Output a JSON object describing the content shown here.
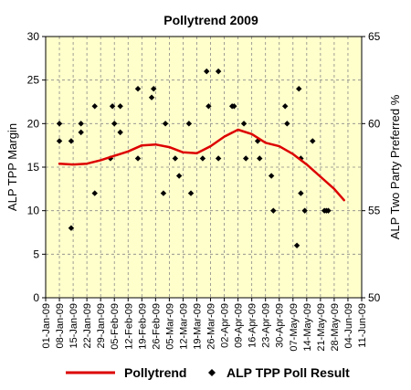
{
  "chart_data": {
    "type": "line",
    "title": "Pollytrend 2009",
    "ylabel": "ALP TPP Margin",
    "y2label": "ALP Two Party Preferred %",
    "ylim": [
      0,
      30
    ],
    "y2lim": [
      50,
      65
    ],
    "yticks": [
      0,
      5,
      10,
      15,
      20,
      25,
      30
    ],
    "y2ticks": [
      50,
      55,
      60,
      65
    ],
    "xlim": [
      "2009-01-01",
      "2009-06-11"
    ],
    "x_tick_labels": [
      "01-Jan-09",
      "08-Jan-09",
      "15-Jan-09",
      "22-Jan-09",
      "29-Jan-09",
      "05-Feb-09",
      "12-Feb-09",
      "19-Feb-09",
      "26-Feb-09",
      "05-Mar-09",
      "12-Mar-09",
      "19-Mar-09",
      "26-Mar-09",
      "02-Apr-09",
      "09-Apr-09",
      "16-Apr-09",
      "23-Apr-09",
      "30-Apr-09",
      "07-May-09",
      "14-May-09",
      "21-May-09",
      "28-May-09",
      "04-Jun-09",
      "11-Jun-09"
    ],
    "grid": true,
    "plot_background": "#ffffcc",
    "legend_position": "bottom",
    "series": [
      {
        "name": "Pollytrend",
        "kind": "line",
        "color": "#dd0000",
        "points": [
          {
            "x": "2009-01-08",
            "y": 15.4
          },
          {
            "x": "2009-01-15",
            "y": 15.3
          },
          {
            "x": "2009-01-22",
            "y": 15.4
          },
          {
            "x": "2009-01-29",
            "y": 15.8
          },
          {
            "x": "2009-02-05",
            "y": 16.3
          },
          {
            "x": "2009-02-12",
            "y": 16.8
          },
          {
            "x": "2009-02-19",
            "y": 17.5
          },
          {
            "x": "2009-02-26",
            "y": 17.6
          },
          {
            "x": "2009-03-05",
            "y": 17.3
          },
          {
            "x": "2009-03-12",
            "y": 16.7
          },
          {
            "x": "2009-03-19",
            "y": 16.6
          },
          {
            "x": "2009-03-26",
            "y": 17.4
          },
          {
            "x": "2009-04-02",
            "y": 18.5
          },
          {
            "x": "2009-04-09",
            "y": 19.3
          },
          {
            "x": "2009-04-16",
            "y": 18.8
          },
          {
            "x": "2009-04-23",
            "y": 17.8
          },
          {
            "x": "2009-04-30",
            "y": 17.4
          },
          {
            "x": "2009-05-07",
            "y": 16.5
          },
          {
            "x": "2009-05-14",
            "y": 15.3
          },
          {
            "x": "2009-05-21",
            "y": 13.9
          },
          {
            "x": "2009-05-28",
            "y": 12.5
          },
          {
            "x": "2009-06-02",
            "y": 11.2
          }
        ]
      },
      {
        "name": "ALP TPP Poll Result",
        "kind": "scatter",
        "color": "#000000",
        "points": [
          {
            "x": "2009-01-08",
            "y": 20
          },
          {
            "x": "2009-01-08",
            "y": 18
          },
          {
            "x": "2009-01-14",
            "y": 8
          },
          {
            "x": "2009-01-14",
            "y": 18
          },
          {
            "x": "2009-01-19",
            "y": 20
          },
          {
            "x": "2009-01-19",
            "y": 19
          },
          {
            "x": "2009-01-26",
            "y": 22
          },
          {
            "x": "2009-01-26",
            "y": 12
          },
          {
            "x": "2009-02-03",
            "y": 16
          },
          {
            "x": "2009-02-04",
            "y": 22
          },
          {
            "x": "2009-02-05",
            "y": 20
          },
          {
            "x": "2009-02-08",
            "y": 22
          },
          {
            "x": "2009-02-08",
            "y": 19
          },
          {
            "x": "2009-02-17",
            "y": 24
          },
          {
            "x": "2009-02-17",
            "y": 16
          },
          {
            "x": "2009-02-24",
            "y": 23
          },
          {
            "x": "2009-02-25",
            "y": 24
          },
          {
            "x": "2009-03-02",
            "y": 12
          },
          {
            "x": "2009-03-03",
            "y": 20
          },
          {
            "x": "2009-03-08",
            "y": 16
          },
          {
            "x": "2009-03-10",
            "y": 14
          },
          {
            "x": "2009-03-15",
            "y": 20
          },
          {
            "x": "2009-03-16",
            "y": 12
          },
          {
            "x": "2009-03-22",
            "y": 16
          },
          {
            "x": "2009-03-24",
            "y": 26
          },
          {
            "x": "2009-03-25",
            "y": 22
          },
          {
            "x": "2009-03-30",
            "y": 26
          },
          {
            "x": "2009-03-30",
            "y": 16
          },
          {
            "x": "2009-04-06",
            "y": 22
          },
          {
            "x": "2009-04-07",
            "y": 22
          },
          {
            "x": "2009-04-12",
            "y": 20
          },
          {
            "x": "2009-04-13",
            "y": 16
          },
          {
            "x": "2009-04-19",
            "y": 18
          },
          {
            "x": "2009-04-20",
            "y": 16
          },
          {
            "x": "2009-04-26",
            "y": 14
          },
          {
            "x": "2009-04-27",
            "y": 10
          },
          {
            "x": "2009-05-03",
            "y": 22
          },
          {
            "x": "2009-05-04",
            "y": 20
          },
          {
            "x": "2009-05-09",
            "y": 6
          },
          {
            "x": "2009-05-10",
            "y": 24
          },
          {
            "x": "2009-05-11",
            "y": 12
          },
          {
            "x": "2009-05-11",
            "y": 16
          },
          {
            "x": "2009-05-13",
            "y": 10
          },
          {
            "x": "2009-05-17",
            "y": 18
          },
          {
            "x": "2009-05-23",
            "y": 10
          },
          {
            "x": "2009-05-24",
            "y": 10
          },
          {
            "x": "2009-05-25",
            "y": 10
          }
        ]
      }
    ]
  }
}
